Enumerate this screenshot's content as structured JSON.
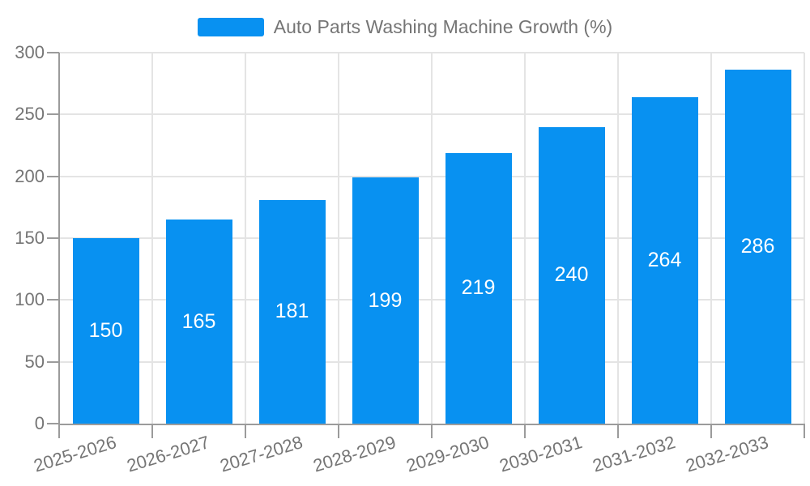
{
  "chart_data": {
    "type": "bar",
    "title": "Auto Parts Washing Machine Growth (%)",
    "legend": {
      "label": "Auto Parts Washing Machine Growth (%)",
      "position": "top-center"
    },
    "categories": [
      "2025-2026",
      "2026-2027",
      "2027-2028",
      "2028-2029",
      "2029-2030",
      "2030-2031",
      "2031-2032",
      "2032-2033"
    ],
    "series": [
      {
        "name": "Auto Parts Washing Machine Growth (%)",
        "values": [
          150,
          165,
          181,
          199,
          219,
          240,
          264,
          286
        ]
      }
    ],
    "xlabel": "",
    "ylabel": "",
    "ylim": [
      0,
      300
    ],
    "ytick_step": 50,
    "ytick_labels": [
      "0",
      "50",
      "100",
      "150",
      "200",
      "250",
      "300"
    ],
    "xtick_rotation_deg": -17,
    "grid": true,
    "bar_label_position": "inside-center",
    "colors": {
      "bar": "#0891f1",
      "bar_label": "#ffffff",
      "axis_text": "#757575",
      "axis_line": "#9b9b9b",
      "gridline": "#e4e4e4",
      "background": "#ffffff"
    }
  }
}
